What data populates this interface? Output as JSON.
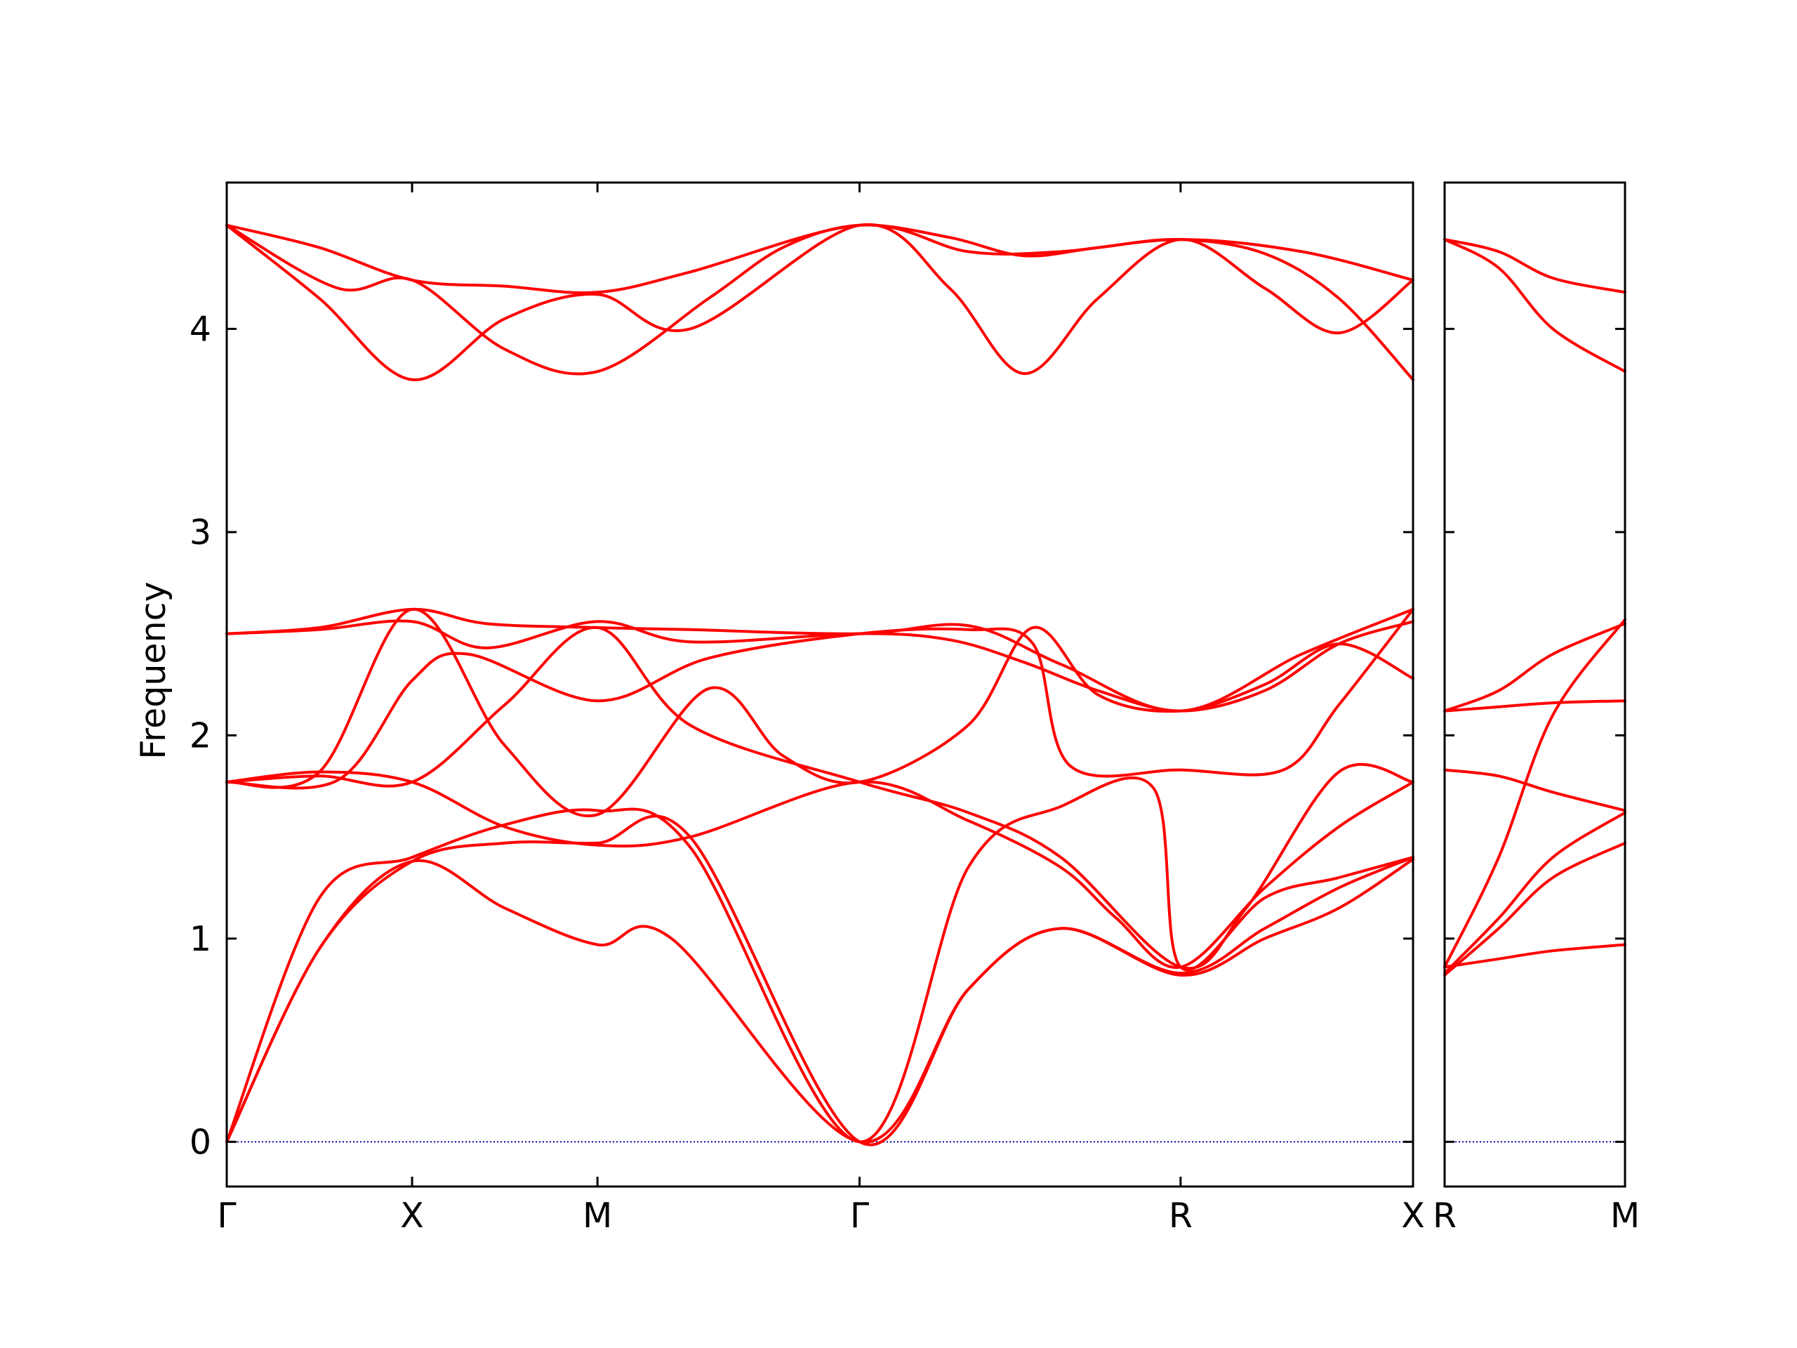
{
  "chart_data": {
    "type": "line",
    "ylabel": "Frequency",
    "ylim": [
      -0.22,
      4.72
    ],
    "yticks": [
      0,
      1,
      2,
      3,
      4
    ],
    "ytick_labels": [
      "0",
      "1",
      "2",
      "3",
      "4"
    ],
    "line_color": "#ff0000",
    "zero_line_color": "#0000aa",
    "zero_line_style": "dotted",
    "grid": false,
    "legend": "none",
    "panels": [
      {
        "name": "panel-main",
        "x_range": [
          0,
          6.4
        ],
        "x_ticks": [
          0,
          1,
          2,
          3.414,
          5.146,
          6.56
        ],
        "x_tick_labels": [
          "Γ",
          "X",
          "M",
          "Γ",
          "R",
          "X"
        ],
        "series": [
          {
            "x": [
              0,
              0.5,
              1,
              1.5,
              2,
              2.5,
              3.414,
              4.0,
              4.5,
              5.146,
              5.8,
              6.56
            ],
            "y": [
              4.51,
              4.4,
              4.24,
              4.21,
              4.18,
              4.28,
              4.51,
              4.38,
              4.38,
              4.44,
              4.38,
              4.24
            ]
          },
          {
            "x": [
              0,
              0.5,
              1,
              1.5,
              2,
              2.5,
              3.414,
              3.9,
              4.3,
              4.7,
              5.146,
              5.6,
              6.0,
              6.56
            ],
            "y": [
              4.51,
              4.15,
              3.75,
              4.05,
              4.17,
              4.0,
              4.51,
              4.2,
              3.78,
              4.15,
              4.44,
              4.2,
              3.98,
              4.24
            ]
          },
          {
            "x": [
              0,
              0.6,
              1,
              1.5,
              2,
              2.6,
              3.0,
              3.414,
              3.9,
              4.3,
              4.7,
              5.146,
              5.6,
              6.0,
              6.56
            ],
            "y": [
              4.51,
              4.2,
              4.24,
              3.9,
              3.79,
              4.15,
              4.4,
              4.51,
              4.45,
              4.36,
              4.4,
              4.44,
              4.37,
              4.15,
              3.75
            ]
          },
          {
            "x": [
              0,
              0.5,
              1,
              1.4,
              2,
              2.5,
              3.414,
              4.0,
              4.5,
              5.146,
              5.8,
              6.56
            ],
            "y": [
              2.5,
              2.53,
              2.62,
              2.55,
              2.53,
              2.52,
              2.5,
              2.54,
              2.35,
              2.12,
              2.4,
              2.62
            ]
          },
          {
            "x": [
              0,
              0.5,
              1,
              1.4,
              2,
              2.5,
              3.414,
              3.9,
              4.3,
              4.7,
              5.146,
              5.6,
              6.0,
              6.56
            ],
            "y": [
              2.5,
              2.52,
              2.56,
              2.43,
              2.56,
              2.46,
              2.5,
              2.47,
              2.36,
              2.22,
              2.12,
              2.22,
              2.45,
              2.56
            ]
          },
          {
            "x": [
              0,
              0.6,
              1,
              1.3,
              2,
              2.6,
              3.414,
              4.0,
              4.35,
              4.55,
              5.146,
              5.7,
              6.0,
              6.56
            ],
            "y": [
              1.77,
              1.78,
              2.27,
              2.4,
              2.17,
              2.38,
              2.5,
              2.52,
              2.45,
              1.85,
              1.83,
              1.83,
              2.15,
              2.62
            ]
          },
          {
            "x": [
              0,
              0.5,
              1,
              1.5,
              2,
              2.6,
              3.0,
              3.414,
              4.0,
              4.35,
              4.7,
              5.146,
              5.6,
              6.0,
              6.56
            ],
            "y": [
              1.77,
              1.82,
              2.62,
              1.95,
              1.61,
              2.23,
              1.9,
              1.77,
              2.05,
              2.53,
              2.2,
              2.12,
              2.25,
              2.45,
              2.28
            ]
          },
          {
            "x": [
              0,
              0.5,
              1,
              1.5,
              2,
              2.5,
              3.414,
              4.0,
              4.5,
              5.146,
              5.5,
              6.0,
              6.56
            ],
            "y": [
              1.77,
              1.8,
              1.77,
              2.15,
              2.53,
              2.05,
              1.77,
              1.62,
              1.4,
              0.86,
              1.15,
              1.82,
              1.77
            ]
          },
          {
            "x": [
              0,
              0.5,
              1,
              1.5,
              2,
              2.5,
              3.414,
              4.0,
              4.5,
              4.8,
              5.146,
              5.6,
              6.0,
              6.56
            ],
            "y": [
              1.77,
              1.82,
              1.77,
              1.55,
              1.46,
              1.5,
              1.77,
              1.58,
              1.35,
              1.1,
              0.86,
              1.25,
              1.55,
              1.77
            ]
          },
          {
            "x": [
              0,
              0.5,
              1,
              1.5,
              2,
              2.5,
              3.414,
              4.0,
              4.5,
              5.0,
              5.146,
              5.6,
              6.0,
              6.56
            ],
            "y": [
              0,
              1.2,
              1.4,
              1.56,
              1.63,
              1.45,
              0,
              1.35,
              1.65,
              1.74,
              0.86,
              1.2,
              1.3,
              1.4
            ]
          },
          {
            "x": [
              0,
              0.5,
              1,
              1.5,
              2,
              2.5,
              3.414,
              4.0,
              4.5,
              5.146,
              5.6,
              6.0,
              6.56
            ],
            "y": [
              0,
              0.95,
              1.38,
              1.47,
              1.47,
              1.5,
              0,
              0.75,
              1.05,
              0.83,
              1.05,
              1.25,
              1.4
            ]
          },
          {
            "x": [
              0,
              0.5,
              1,
              1.5,
              2,
              2.4,
              3.414,
              4.0,
              4.5,
              5.146,
              5.6,
              6.0,
              6.56
            ],
            "y": [
              0,
              0.95,
              1.38,
              1.15,
              0.97,
              1.0,
              0,
              0.75,
              1.05,
              0.82,
              1.0,
              1.15,
              1.39
            ]
          }
        ]
      },
      {
        "name": "panel-right",
        "x_range": [
          0,
          1
        ],
        "x_ticks": [
          0,
          1
        ],
        "x_tick_labels": [
          "R",
          "M"
        ],
        "series": [
          {
            "x": [
              0,
              0.3,
              0.6,
              1
            ],
            "y": [
              4.44,
              4.38,
              4.25,
              4.18
            ]
          },
          {
            "x": [
              0,
              0.3,
              0.6,
              1
            ],
            "y": [
              4.44,
              4.3,
              4.0,
              3.79
            ]
          },
          {
            "x": [
              0,
              0.3,
              0.6,
              1
            ],
            "y": [
              2.12,
              2.22,
              2.4,
              2.55
            ]
          },
          {
            "x": [
              0,
              0.3,
              0.6,
              1
            ],
            "y": [
              2.12,
              2.14,
              2.16,
              2.17
            ]
          },
          {
            "x": [
              0,
              0.3,
              0.6,
              1
            ],
            "y": [
              0.86,
              1.4,
              2.1,
              2.57
            ]
          },
          {
            "x": [
              0,
              0.3,
              0.6,
              1
            ],
            "y": [
              1.83,
              1.8,
              1.72,
              1.63
            ]
          },
          {
            "x": [
              0,
              0.3,
              0.6,
              1
            ],
            "y": [
              0.83,
              1.1,
              1.4,
              1.62
            ]
          },
          {
            "x": [
              0,
              0.3,
              0.6,
              1
            ],
            "y": [
              0.82,
              1.05,
              1.3,
              1.47
            ]
          },
          {
            "x": [
              0,
              0.3,
              0.6,
              1
            ],
            "y": [
              0.86,
              0.9,
              0.94,
              0.97
            ]
          }
        ]
      }
    ]
  }
}
